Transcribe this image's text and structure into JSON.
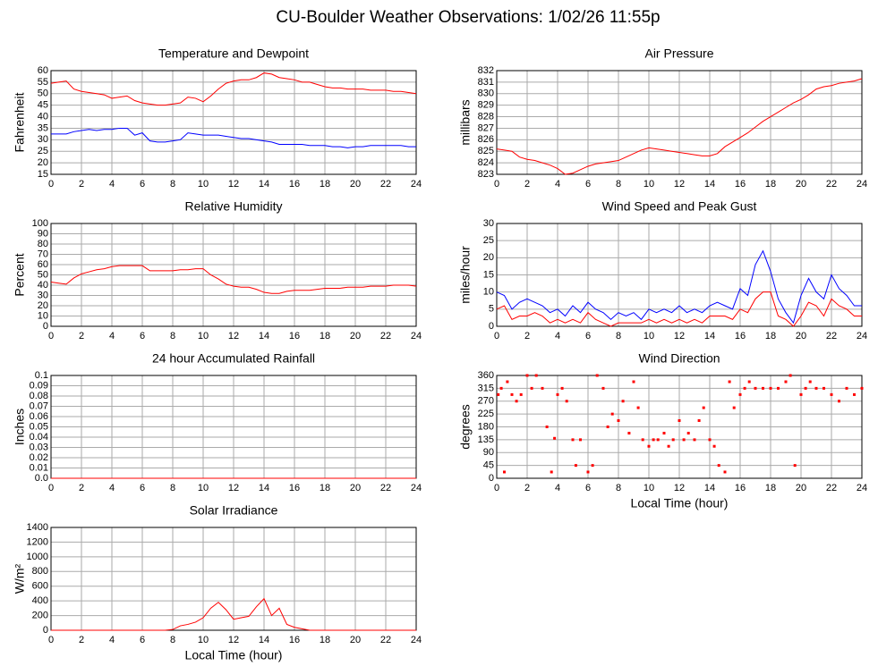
{
  "title": "CU-Boulder Weather Observations: 1/02/26 11:55p",
  "chart_data": [
    {
      "type": "line",
      "title": "Temperature and Dewpoint",
      "ylabel": "Fahrenheit",
      "x": [
        0,
        0.5,
        1,
        1.5,
        2,
        2.5,
        3,
        3.5,
        4,
        4.5,
        5,
        5.5,
        6,
        6.5,
        7,
        7.5,
        8,
        8.5,
        9,
        9.5,
        10,
        10.5,
        11,
        11.5,
        12,
        12.5,
        13,
        13.5,
        14,
        14.5,
        15,
        15.5,
        16,
        16.5,
        17,
        17.5,
        18,
        18.5,
        19,
        19.5,
        20,
        20.5,
        21,
        21.5,
        22,
        22.5,
        23,
        23.5,
        24
      ],
      "series": [
        {
          "color": "#ff0000",
          "values": [
            54.5,
            55,
            55.5,
            52,
            51,
            50.5,
            50,
            49.5,
            48,
            48.5,
            49,
            47,
            46,
            45.5,
            45,
            45,
            45.5,
            46,
            48.5,
            48,
            46.5,
            49,
            52,
            54.5,
            55.5,
            56,
            56,
            57,
            59,
            58.5,
            57,
            56.5,
            56,
            55,
            55,
            54,
            53,
            52.5,
            52.5,
            52,
            52,
            52,
            51.5,
            51.5,
            51.5,
            51,
            51,
            50.5,
            50
          ]
        },
        {
          "color": "#0000ff",
          "values": [
            32.5,
            32.5,
            32.5,
            33.5,
            34,
            34.5,
            34,
            34.5,
            34.5,
            35,
            35,
            32,
            33,
            29.5,
            29,
            29,
            29.5,
            30,
            33,
            32.5,
            32,
            32,
            32,
            31.5,
            31,
            30.5,
            30.5,
            30,
            29.5,
            29,
            28,
            28,
            28,
            28,
            27.5,
            27.5,
            27.5,
            27,
            27,
            26.5,
            27,
            27,
            27.5,
            27.5,
            27.5,
            27.5,
            27.5,
            27,
            27
          ]
        }
      ],
      "xlim": [
        0,
        24
      ],
      "xticks": [
        0,
        2,
        4,
        6,
        8,
        10,
        12,
        14,
        16,
        18,
        20,
        22,
        24
      ],
      "ylim": [
        15,
        60
      ],
      "yticks": [
        15,
        20,
        25,
        30,
        35,
        40,
        45,
        50,
        55,
        60
      ],
      "grid": true
    },
    {
      "type": "line",
      "title": "Air Pressure",
      "ylabel": "millibars",
      "x": [
        0,
        0.5,
        1,
        1.5,
        2,
        2.5,
        3,
        3.5,
        4,
        4.5,
        5,
        5.5,
        6,
        6.5,
        7,
        7.5,
        8,
        8.5,
        9,
        9.5,
        10,
        10.5,
        11,
        11.5,
        12,
        12.5,
        13,
        13.5,
        14,
        14.5,
        15,
        15.5,
        16,
        16.5,
        17,
        17.5,
        18,
        18.5,
        19,
        19.5,
        20,
        20.5,
        21,
        21.5,
        22,
        22.5,
        23,
        23.5,
        24
      ],
      "series": [
        {
          "color": "#ff0000",
          "values": [
            825.2,
            825.1,
            825,
            824.5,
            824.3,
            824.2,
            824,
            823.8,
            823.5,
            823,
            823.1,
            823.4,
            823.7,
            823.9,
            824,
            824.1,
            824.2,
            824.5,
            824.8,
            825.1,
            825.3,
            825.2,
            825.1,
            825,
            824.9,
            824.8,
            824.7,
            824.6,
            824.6,
            824.8,
            825.4,
            825.8,
            826.2,
            826.6,
            827.1,
            827.6,
            828,
            828.4,
            828.8,
            829.2,
            829.5,
            829.9,
            830.4,
            830.6,
            830.7,
            830.9,
            831,
            831.1,
            831.3
          ]
        }
      ],
      "xlim": [
        0,
        24
      ],
      "xticks": [
        0,
        2,
        4,
        6,
        8,
        10,
        12,
        14,
        16,
        18,
        20,
        22,
        24
      ],
      "ylim": [
        823,
        832
      ],
      "yticks": [
        823,
        824,
        825,
        826,
        827,
        828,
        829,
        830,
        831,
        832
      ],
      "grid": true
    },
    {
      "type": "line",
      "title": "Relative Humidity",
      "ylabel": "Percent",
      "x": [
        0,
        0.5,
        1,
        1.5,
        2,
        2.5,
        3,
        3.5,
        4,
        4.5,
        5,
        5.5,
        6,
        6.5,
        7,
        7.5,
        8,
        8.5,
        9,
        9.5,
        10,
        10.5,
        11,
        11.5,
        12,
        12.5,
        13,
        13.5,
        14,
        14.5,
        15,
        15.5,
        16,
        16.5,
        17,
        17.5,
        18,
        18.5,
        19,
        19.5,
        20,
        20.5,
        21,
        21.5,
        22,
        22.5,
        23,
        23.5,
        24
      ],
      "series": [
        {
          "color": "#ff0000",
          "values": [
            43,
            42,
            41,
            47,
            51,
            53,
            55,
            56,
            58,
            59,
            59,
            59,
            59,
            54,
            54,
            54,
            54,
            55,
            55,
            56,
            56,
            50,
            46,
            41,
            39,
            38,
            38,
            36,
            33,
            32,
            32,
            34,
            35,
            35,
            35,
            36,
            37,
            37,
            37,
            38,
            38,
            38,
            39,
            39,
            39,
            40,
            40,
            40,
            39
          ]
        }
      ],
      "xlim": [
        0,
        24
      ],
      "xticks": [
        0,
        2,
        4,
        6,
        8,
        10,
        12,
        14,
        16,
        18,
        20,
        22,
        24
      ],
      "ylim": [
        0,
        100
      ],
      "yticks": [
        0,
        10,
        20,
        30,
        40,
        50,
        60,
        70,
        80,
        90,
        100
      ],
      "grid": true
    },
    {
      "type": "line",
      "title": "Wind Speed and Peak Gust",
      "ylabel": "miles/hour",
      "x": [
        0,
        0.5,
        1,
        1.5,
        2,
        2.5,
        3,
        3.5,
        4,
        4.5,
        5,
        5.5,
        6,
        6.5,
        7,
        7.5,
        8,
        8.5,
        9,
        9.5,
        10,
        10.5,
        11,
        11.5,
        12,
        12.5,
        13,
        13.5,
        14,
        14.5,
        15,
        15.5,
        16,
        16.5,
        17,
        17.5,
        18,
        18.5,
        19,
        19.5,
        20,
        20.5,
        21,
        21.5,
        22,
        22.5,
        23,
        23.5,
        24
      ],
      "series": [
        {
          "color": "#0000ff",
          "values": [
            10,
            9,
            5,
            7,
            8,
            7,
            6,
            4,
            5,
            3,
            6,
            4,
            7,
            5,
            4,
            2,
            4,
            3,
            4,
            2,
            5,
            4,
            5,
            4,
            6,
            4,
            5,
            4,
            6,
            7,
            6,
            5,
            11,
            9,
            18,
            22,
            16,
            8,
            4,
            1,
            9,
            14,
            10,
            8,
            15,
            11,
            9,
            6,
            6
          ]
        },
        {
          "color": "#ff0000",
          "values": [
            5,
            6,
            2,
            3,
            3,
            4,
            3,
            1,
            2,
            1,
            2,
            1,
            4,
            2,
            1,
            0,
            1,
            1,
            1,
            1,
            2,
            1,
            2,
            1,
            2,
            1,
            2,
            1,
            3,
            3,
            3,
            2,
            5,
            4,
            8,
            10,
            10,
            3,
            2,
            0,
            3,
            7,
            6,
            3,
            8,
            6,
            5,
            3,
            3
          ]
        }
      ],
      "xlim": [
        0,
        24
      ],
      "xticks": [
        0,
        2,
        4,
        6,
        8,
        10,
        12,
        14,
        16,
        18,
        20,
        22,
        24
      ],
      "ylim": [
        0,
        30
      ],
      "yticks": [
        0,
        5,
        10,
        15,
        20,
        25,
        30
      ],
      "grid": true
    },
    {
      "type": "line",
      "title": "24 hour Accumulated Rainfall",
      "ylabel": "Inches",
      "x": [
        0,
        24
      ],
      "series": [
        {
          "color": "#ff0000",
          "values": [
            0,
            0
          ]
        }
      ],
      "xlim": [
        0,
        24
      ],
      "xticks": [
        0,
        2,
        4,
        6,
        8,
        10,
        12,
        14,
        16,
        18,
        20,
        22,
        24
      ],
      "ylim": [
        0,
        0.1
      ],
      "yticks": [
        {
          "value": 0,
          "label": "0.0"
        },
        0.01,
        0.02,
        0.03,
        0.04,
        0.05,
        0.06,
        0.07,
        0.08,
        0.09,
        0.1
      ],
      "grid": true
    },
    {
      "type": "scatter",
      "title": "Wind Direction",
      "ylabel": "degrees",
      "xlabel": "Local Time (hour)",
      "x": [
        0.1,
        0.3,
        0.5,
        0.7,
        1,
        1.3,
        1.6,
        2,
        2.3,
        2.6,
        3,
        3.3,
        3.6,
        3.8,
        4,
        4.3,
        4.6,
        5,
        5.2,
        5.5,
        6,
        6.3,
        6.6,
        7,
        7.3,
        7.6,
        8,
        8.3,
        8.7,
        9,
        9.3,
        9.6,
        10,
        10.3,
        10.6,
        11,
        11.3,
        11.6,
        12,
        12.3,
        12.6,
        13,
        13.3,
        13.6,
        14,
        14.3,
        14.6,
        15,
        15.3,
        15.6,
        16,
        16.3,
        16.6,
        17,
        17.5,
        18,
        18.5,
        19,
        19.3,
        19.6,
        20,
        20.3,
        20.6,
        21,
        21.5,
        22,
        22.5,
        23,
        23.5,
        24
      ],
      "series": [
        {
          "color": "#ff0000",
          "values": [
            293,
            315,
            22,
            338,
            293,
            270,
            293,
            360,
            315,
            360,
            315,
            180,
            22,
            140,
            293,
            315,
            270,
            135,
            45,
            135,
            22,
            45,
            360,
            315,
            180,
            225,
            202,
            270,
            158,
            338,
            247,
            135,
            112,
            135,
            135,
            158,
            112,
            135,
            202,
            135,
            158,
            135,
            202,
            247,
            135,
            112,
            45,
            22,
            338,
            247,
            293,
            315,
            338,
            315,
            315,
            315,
            315,
            338,
            360,
            45,
            293,
            315,
            338,
            315,
            315,
            293,
            270,
            315,
            293,
            315
          ]
        }
      ],
      "xlim": [
        0,
        24
      ],
      "xticks": [
        0,
        2,
        4,
        6,
        8,
        10,
        12,
        14,
        16,
        18,
        20,
        22,
        24
      ],
      "ylim": [
        0,
        360
      ],
      "yticks": [
        0,
        45,
        90,
        135,
        180,
        225,
        270,
        315,
        360
      ],
      "grid": true
    },
    {
      "type": "line",
      "title": "Solar Irradiance",
      "ylabel": "W/m²",
      "xlabel": "Local Time (hour)",
      "x": [
        0,
        1,
        2,
        3,
        4,
        5,
        6,
        7,
        7.5,
        8,
        8.5,
        9,
        9.5,
        10,
        10.5,
        11,
        11.5,
        12,
        12.5,
        13,
        13.5,
        14,
        14.5,
        15,
        15.5,
        16,
        16.5,
        17,
        18,
        19,
        20,
        21,
        22,
        23,
        24
      ],
      "series": [
        {
          "color": "#ff0000",
          "values": [
            0,
            0,
            0,
            0,
            0,
            0,
            0,
            0,
            0,
            10,
            60,
            80,
            110,
            170,
            300,
            380,
            280,
            150,
            170,
            190,
            320,
            430,
            200,
            300,
            80,
            40,
            20,
            0,
            0,
            0,
            0,
            0,
            0,
            0,
            0
          ]
        }
      ],
      "xlim": [
        0,
        24
      ],
      "xticks": [
        0,
        2,
        4,
        6,
        8,
        10,
        12,
        14,
        16,
        18,
        20,
        22,
        24
      ],
      "ylim": [
        0,
        1400
      ],
      "yticks": [
        0,
        200,
        400,
        600,
        800,
        1000,
        1200,
        1400
      ],
      "grid": true
    }
  ]
}
